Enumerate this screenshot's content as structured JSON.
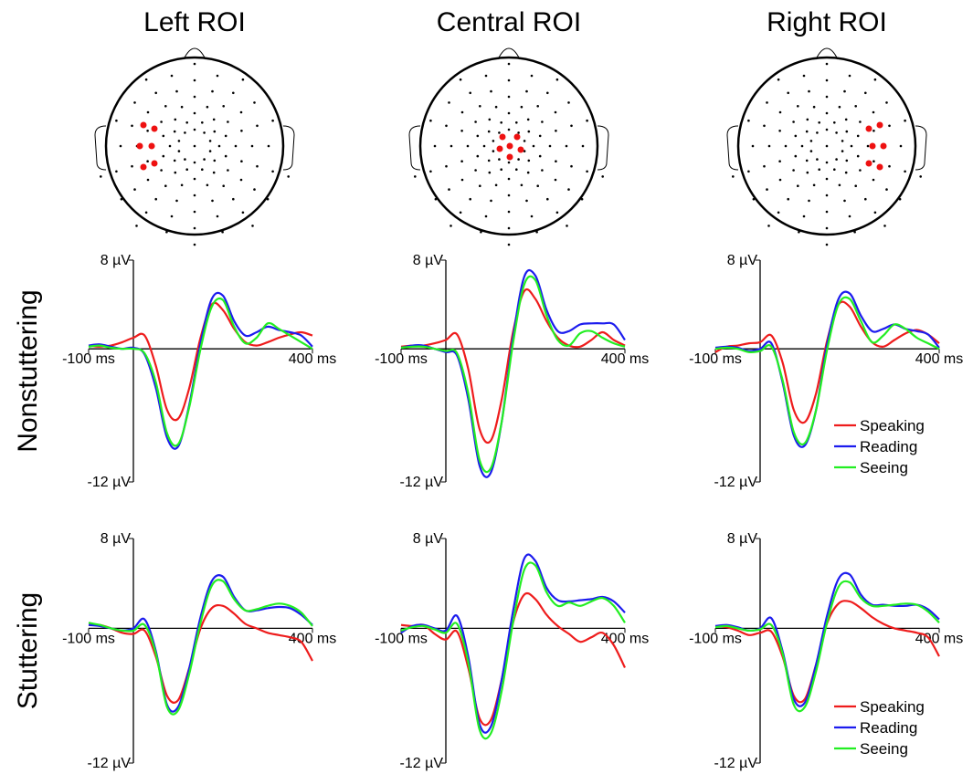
{
  "chart_data": [
    {
      "type": "line",
      "title": "Left ROI",
      "row_label": "Nonstuttering",
      "x": [
        -100,
        -75,
        -50,
        -25,
        0,
        25,
        50,
        75,
        100,
        125,
        150,
        175,
        200,
        225,
        250,
        275,
        300,
        325,
        350,
        375,
        400
      ],
      "xlim": [
        -100,
        400
      ],
      "xticks": [
        {
          "value": -100,
          "label": "-100 ms"
        },
        {
          "value": 400,
          "label": "400 ms"
        }
      ],
      "ylim": [
        -12,
        8
      ],
      "yticks": [
        {
          "value": 8,
          "label": "8 µV"
        },
        {
          "value": -12,
          "label": "-12 µV"
        }
      ],
      "series": [
        {
          "name": "Speaking",
          "color": "#ee1c1c",
          "values": [
            0.3,
            0.2,
            0.3,
            0.6,
            1.0,
            1.2,
            -1.5,
            -5.5,
            -6.3,
            -3.5,
            1.0,
            4.0,
            3.5,
            1.8,
            0.6,
            0.3,
            0.6,
            1.0,
            1.3,
            1.5,
            1.2
          ]
        },
        {
          "name": "Reading",
          "color": "#1c1cee",
          "values": [
            0.3,
            0.4,
            0.2,
            0,
            0.1,
            -0.5,
            -3.5,
            -8.0,
            -8.8,
            -5.0,
            0.5,
            4.5,
            4.8,
            2.5,
            1.2,
            1.5,
            2.0,
            1.7,
            1.5,
            1.2,
            0.2
          ]
        },
        {
          "name": "Seeing",
          "color": "#22ee22",
          "values": [
            0.2,
            0.3,
            0.1,
            0,
            0,
            -0.4,
            -3.0,
            -7.6,
            -8.6,
            -5.2,
            0,
            3.8,
            4.4,
            2.0,
            0.5,
            1.0,
            2.3,
            1.8,
            1.2,
            0.6,
            0
          ]
        }
      ]
    },
    {
      "type": "line",
      "title": "Central ROI",
      "x": [
        -100,
        -75,
        -50,
        -25,
        0,
        25,
        50,
        75,
        100,
        125,
        150,
        175,
        200,
        225,
        250,
        275,
        300,
        325,
        350,
        375,
        400
      ],
      "xlim": [
        -100,
        400
      ],
      "xticks": [
        {
          "value": -100,
          "label": "-100 ms"
        },
        {
          "value": 400,
          "label": "400 ms"
        }
      ],
      "ylim": [
        -12,
        8
      ],
      "yticks": [
        {
          "value": 8,
          "label": "8 µV"
        },
        {
          "value": -12,
          "label": "-12 µV"
        }
      ],
      "series": [
        {
          "name": "Speaking",
          "color": "#ee1c1c",
          "values": [
            0.2,
            0.3,
            0.3,
            0.5,
            0.8,
            1.3,
            -1.8,
            -7.2,
            -8.3,
            -4.5,
            1.5,
            5.2,
            4.5,
            2.5,
            1.0,
            0.3,
            0.2,
            0.8,
            1.5,
            0.8,
            0.3
          ]
        },
        {
          "name": "Reading",
          "color": "#1c1cee",
          "values": [
            0.1,
            0.3,
            0.3,
            0,
            -0.3,
            -0.6,
            -4.5,
            -10.5,
            -11.2,
            -6.5,
            1.0,
            6.5,
            6.6,
            3.5,
            1.6,
            1.6,
            2.2,
            2.3,
            2.3,
            2.2,
            0.8
          ]
        },
        {
          "name": "Seeing",
          "color": "#22ee22",
          "values": [
            0.1,
            0.2,
            0.2,
            0,
            -0.2,
            -0.4,
            -4.0,
            -10.0,
            -10.8,
            -6.5,
            0.5,
            5.8,
            6.2,
            3.0,
            0.8,
            0.3,
            1.4,
            1.6,
            1.0,
            0.5,
            0.2
          ]
        }
      ]
    },
    {
      "type": "line",
      "title": "Right ROI",
      "legend": "lower right",
      "x": [
        -100,
        -75,
        -50,
        -25,
        0,
        25,
        50,
        75,
        100,
        125,
        150,
        175,
        200,
        225,
        250,
        275,
        300,
        325,
        350,
        375,
        400
      ],
      "xlim": [
        -100,
        400
      ],
      "xticks": [
        {
          "value": -100,
          "label": "-100 ms"
        },
        {
          "value": 400,
          "label": "400 ms"
        }
      ],
      "ylim": [
        -12,
        8
      ],
      "yticks": [
        {
          "value": 8,
          "label": "8 µV"
        },
        {
          "value": -12,
          "label": "-12 µV"
        }
      ],
      "series": [
        {
          "name": "Speaking",
          "color": "#ee1c1c",
          "values": [
            -0.3,
            0.2,
            0.3,
            0.5,
            0.6,
            1.2,
            -1.2,
            -5.5,
            -6.6,
            -4.0,
            0.8,
            4.0,
            3.8,
            2.0,
            0.6,
            0.2,
            0.8,
            1.4,
            1.7,
            1.3,
            0.5
          ]
        },
        {
          "name": "Reading",
          "color": "#1c1cee",
          "values": [
            0.1,
            0.2,
            0.1,
            -0.2,
            0,
            0.5,
            -3.0,
            -7.8,
            -8.7,
            -5.5,
            0.5,
            4.5,
            5.0,
            3.0,
            1.6,
            1.8,
            2.2,
            1.8,
            1.6,
            1.3,
            0.1
          ]
        },
        {
          "name": "Seeing",
          "color": "#22ee22",
          "values": [
            0.0,
            0.1,
            0.0,
            -0.3,
            -0.2,
            0.2,
            -2.8,
            -7.5,
            -8.5,
            -5.5,
            0,
            4.0,
            4.5,
            2.5,
            0.6,
            1.2,
            2.2,
            1.8,
            1.0,
            0.5,
            0
          ]
        }
      ]
    },
    {
      "type": "line",
      "row_label": "Stuttering",
      "x": [
        -100,
        -75,
        -50,
        -25,
        0,
        25,
        50,
        75,
        100,
        125,
        150,
        175,
        200,
        225,
        250,
        275,
        300,
        325,
        350,
        375,
        400
      ],
      "xlim": [
        -100,
        400
      ],
      "xticks": [
        {
          "value": -100,
          "label": "-100 ms"
        },
        {
          "value": 400,
          "label": "400 ms"
        }
      ],
      "ylim": [
        -12,
        8
      ],
      "yticks": [
        {
          "value": 8,
          "label": "8 µV"
        },
        {
          "value": -12,
          "label": "-12 µV"
        }
      ],
      "series": [
        {
          "name": "Speaking",
          "color": "#ee1c1c",
          "values": [
            0.3,
            0.3,
            0,
            -0.4,
            -0.5,
            -0.2,
            -2.5,
            -6.0,
            -6.4,
            -3.5,
            0,
            1.8,
            2.0,
            1.3,
            0.4,
            0,
            -0.4,
            -0.6,
            -0.8,
            -1.2,
            -2.9
          ]
        },
        {
          "name": "Reading",
          "color": "#1c1cee",
          "values": [
            0.3,
            0.2,
            0,
            -0.2,
            0,
            0.8,
            -2.0,
            -6.8,
            -7.0,
            -3.5,
            1.0,
            4.2,
            4.6,
            2.8,
            1.6,
            1.6,
            1.8,
            1.9,
            1.8,
            1.2,
            0.3
          ]
        },
        {
          "name": "Seeing",
          "color": "#22ee22",
          "values": [
            0.5,
            0.3,
            0,
            -0.2,
            -0.2,
            0.3,
            -2.2,
            -7.0,
            -7.3,
            -4.0,
            0.5,
            3.8,
            4.2,
            2.6,
            1.6,
            1.7,
            2.0,
            2.2,
            2.0,
            1.4,
            0.2
          ]
        }
      ]
    },
    {
      "type": "line",
      "x": [
        -100,
        -75,
        -50,
        -25,
        0,
        25,
        50,
        75,
        100,
        125,
        150,
        175,
        200,
        225,
        250,
        275,
        300,
        325,
        350,
        375,
        400
      ],
      "xlim": [
        -100,
        400
      ],
      "xticks": [
        {
          "value": -100,
          "label": "-100 ms"
        },
        {
          "value": 400,
          "label": "400 ms"
        }
      ],
      "ylim": [
        -12,
        8
      ],
      "yticks": [
        {
          "value": 8,
          "label": "8 µV"
        },
        {
          "value": -12,
          "label": "-12 µV"
        }
      ],
      "series": [
        {
          "name": "Speaking",
          "color": "#ee1c1c",
          "values": [
            0.3,
            0.2,
            0.3,
            -0.5,
            -1.0,
            -0.3,
            -3.5,
            -8.0,
            -8.2,
            -4.5,
            0.5,
            3.0,
            2.6,
            1.2,
            0.2,
            -0.5,
            -1.2,
            -0.8,
            -0.4,
            -1.5,
            -3.5
          ]
        },
        {
          "name": "Reading",
          "color": "#1c1cee",
          "values": [
            -0.4,
            0.2,
            0.3,
            0,
            -0.2,
            1.1,
            -2.5,
            -8.5,
            -8.8,
            -4.5,
            1.5,
            6.2,
            6.0,
            3.6,
            2.5,
            2.4,
            2.5,
            2.6,
            2.8,
            2.4,
            1.4
          ]
        },
        {
          "name": "Seeing",
          "color": "#22ee22",
          "values": [
            -0.2,
            0.1,
            0.2,
            -0.1,
            -0.4,
            0.4,
            -3.0,
            -9.0,
            -9.4,
            -5.5,
            0.5,
            5.2,
            5.6,
            3.2,
            2.0,
            2.3,
            2.0,
            2.4,
            2.7,
            2.0,
            0.5
          ]
        }
      ]
    },
    {
      "type": "line",
      "legend": "lower right",
      "x": [
        -100,
        -75,
        -50,
        -25,
        0,
        25,
        50,
        75,
        100,
        125,
        150,
        175,
        200,
        225,
        250,
        275,
        300,
        325,
        350,
        375,
        400
      ],
      "xlim": [
        -100,
        400
      ],
      "xticks": [
        {
          "value": -100,
          "label": "-100 ms"
        },
        {
          "value": 400,
          "label": "400 ms"
        }
      ],
      "ylim": [
        -12,
        8
      ],
      "yticks": [
        {
          "value": 8,
          "label": "8 µV"
        },
        {
          "value": -12,
          "label": "-12 µV"
        }
      ],
      "series": [
        {
          "name": "Speaking",
          "color": "#ee1c1c",
          "values": [
            0.2,
            0.1,
            -0.2,
            -0.6,
            -0.4,
            -0.3,
            -2.5,
            -6.0,
            -6.3,
            -3.2,
            0.5,
            2.2,
            2.4,
            1.8,
            1.0,
            0.4,
            0,
            -0.2,
            -0.4,
            -0.8,
            -2.5
          ]
        },
        {
          "name": "Reading",
          "color": "#1c1cee",
          "values": [
            0.2,
            0.3,
            0.1,
            -0.2,
            0,
            0.9,
            -2.0,
            -6.3,
            -6.6,
            -3.2,
            1.2,
            4.4,
            4.8,
            3.0,
            2.1,
            2.1,
            2.0,
            2.0,
            2.1,
            1.7,
            0.8
          ]
        },
        {
          "name": "Seeing",
          "color": "#22ee22",
          "values": [
            0.1,
            0.2,
            0,
            -0.2,
            -0.1,
            0.3,
            -2.2,
            -6.8,
            -7.0,
            -3.8,
            0.6,
            3.7,
            4.1,
            2.7,
            2.0,
            2.0,
            2.1,
            2.2,
            2.1,
            1.5,
            0.5
          ]
        }
      ]
    }
  ]
}
